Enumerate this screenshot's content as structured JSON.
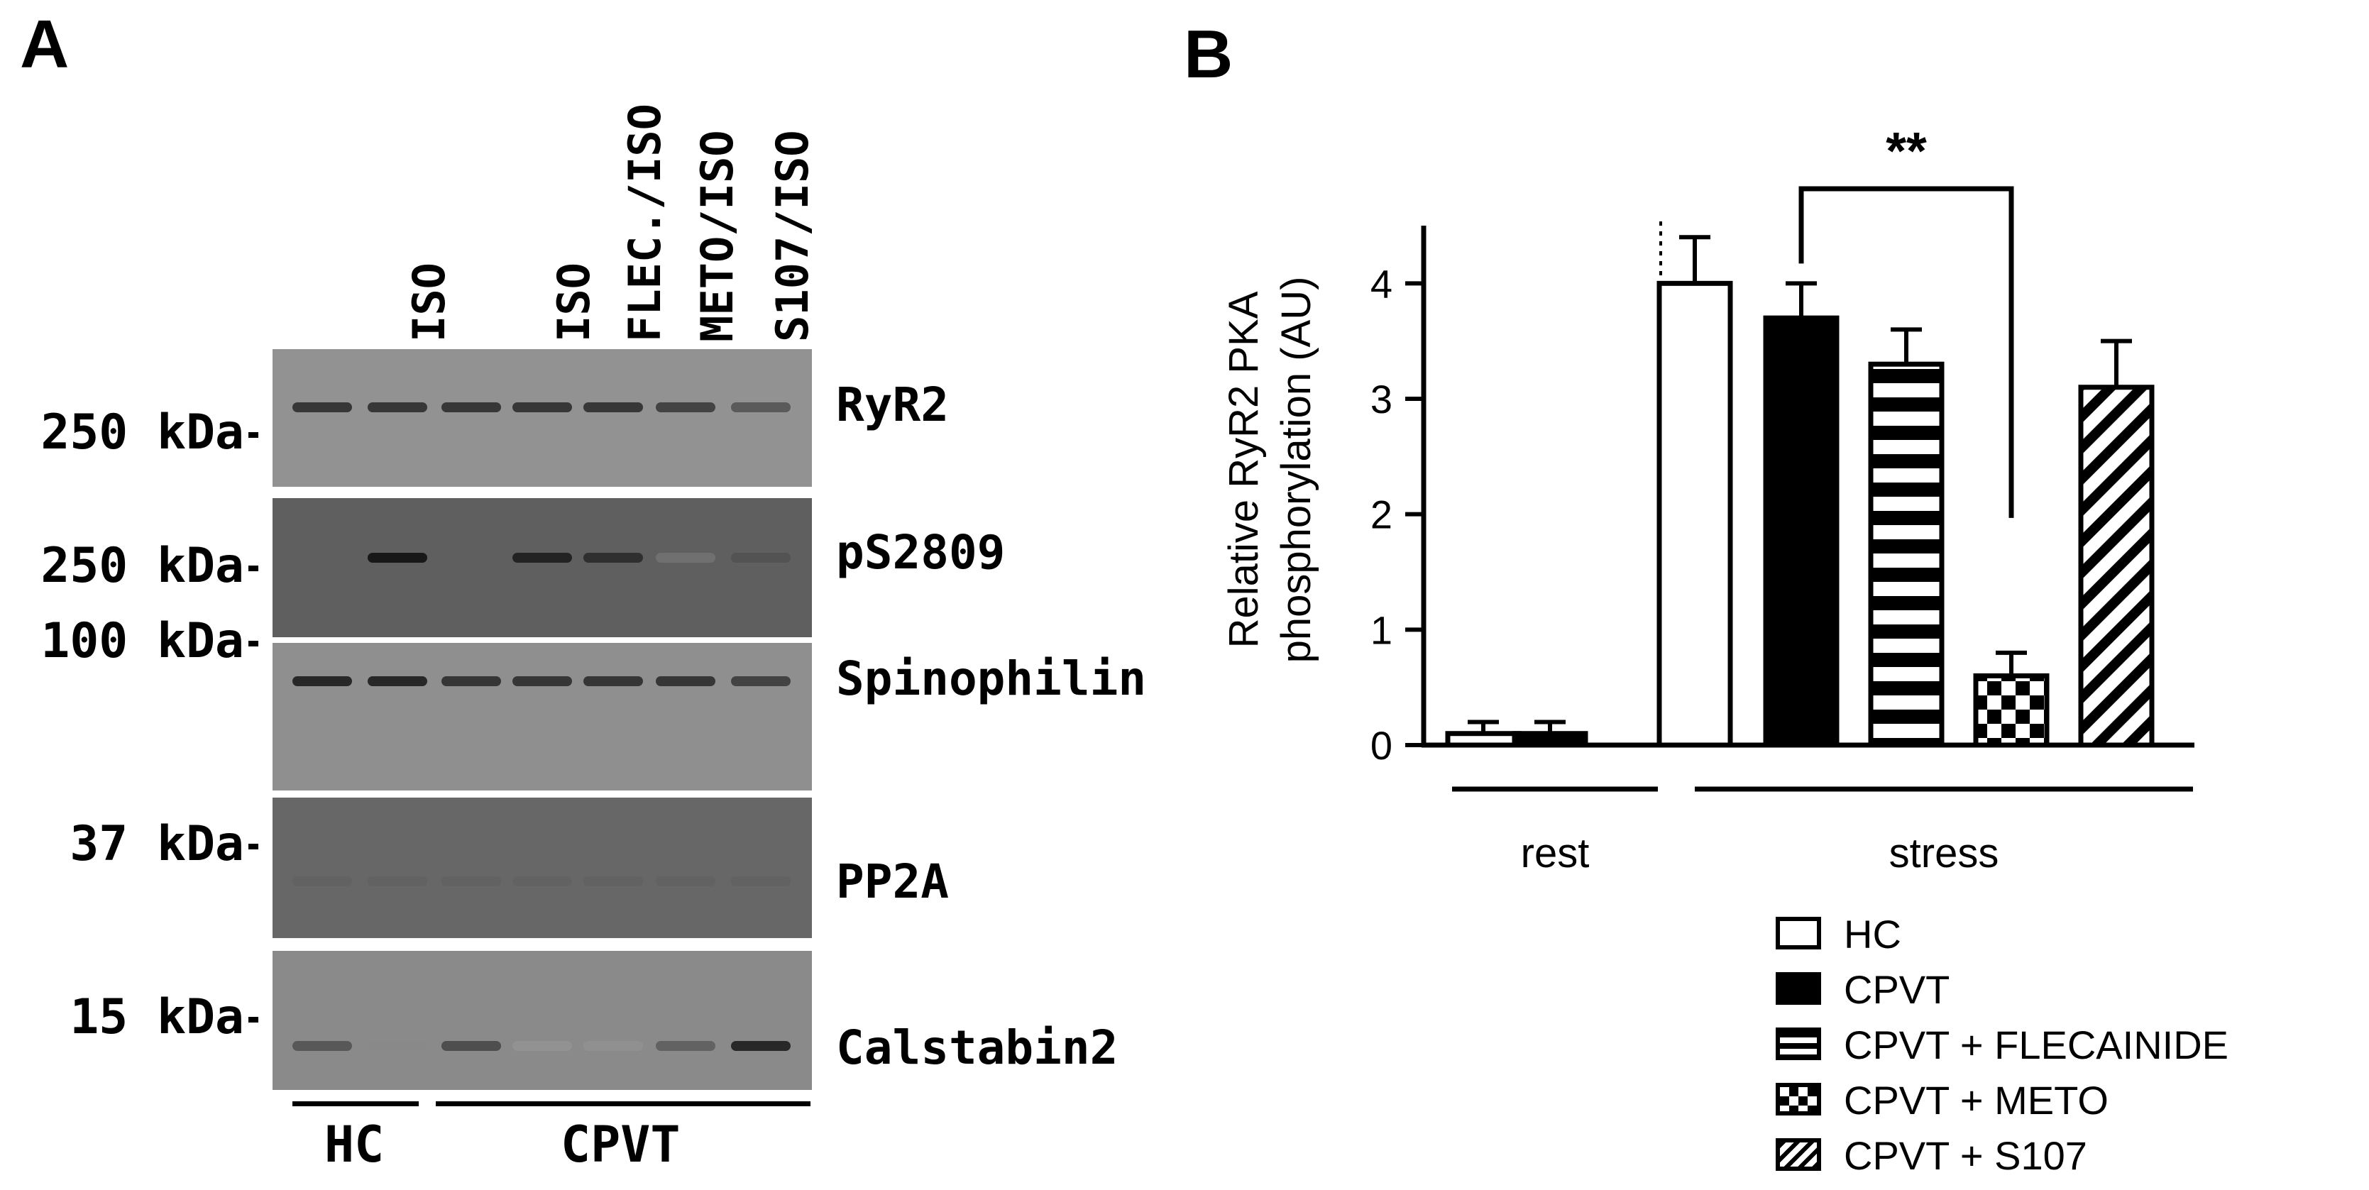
{
  "panels": {
    "a": {
      "letter": "A",
      "lane_labels": [
        "",
        "ISO",
        "",
        "ISO",
        "FLEC./ISO",
        "METO/ISO",
        "S107/ISO"
      ],
      "blots": [
        {
          "protein": "RyR2",
          "marker": "250 kDa",
          "bands": [
            0.85,
            0.85,
            0.85,
            0.85,
            0.85,
            0.8,
            0.7
          ]
        },
        {
          "protein": "pS2809",
          "marker": "250 kDa",
          "bands": [
            0.0,
            0.95,
            0.0,
            0.9,
            0.85,
            0.2,
            0.65
          ]
        },
        {
          "protein": "Spinophilin",
          "marker": "100 kDa",
          "bands": [
            0.9,
            0.9,
            0.85,
            0.85,
            0.85,
            0.85,
            0.8
          ]
        },
        {
          "protein": "PP2A",
          "marker": "37 kDa",
          "bands": [
            0.55,
            0.55,
            0.55,
            0.55,
            0.55,
            0.55,
            0.55
          ]
        },
        {
          "protein": "Calstabin2",
          "marker": "15 kDa",
          "bands": [
            0.7,
            0.35,
            0.75,
            0.15,
            0.2,
            0.65,
            0.9
          ]
        }
      ],
      "groups": [
        {
          "label": "HC",
          "lanes": [
            0,
            1
          ]
        },
        {
          "label": "CPVT",
          "lanes": [
            2,
            6
          ]
        }
      ]
    },
    "b": {
      "letter": "B"
    }
  },
  "chart_data": {
    "type": "bar",
    "ylabel_line1": "Relative RyR2 PKA",
    "ylabel_line2": "phosphorylation (AU)",
    "ylim": [
      0,
      4.5
    ],
    "yticks": [
      "0",
      "1",
      "2",
      "3",
      "4"
    ],
    "grid": false,
    "groups": [
      {
        "label": "rest",
        "bars": [
          {
            "series": "HC",
            "value": 0.1,
            "error": 0.1
          },
          {
            "series": "CPVT",
            "value": 0.1,
            "error": 0.1
          }
        ]
      },
      {
        "label": "stress",
        "bars": [
          {
            "series": "HC",
            "value": 4.0,
            "error": 0.4
          },
          {
            "series": "CPVT",
            "value": 3.7,
            "error": 0.3
          },
          {
            "series": "CPVT + FLECAINIDE",
            "value": 3.3,
            "error": 0.3
          },
          {
            "series": "CPVT + METO",
            "value": 0.6,
            "error": 0.2
          },
          {
            "series": "CPVT + S107",
            "value": 3.1,
            "error": 0.4
          }
        ]
      }
    ],
    "significance": {
      "label": "**",
      "from": "CPVT",
      "to": "CPVT + METO",
      "group": "stress"
    },
    "legend": {
      "placement": "bottom-right",
      "entries": [
        {
          "name": "HC",
          "fill": "white"
        },
        {
          "name": "CPVT",
          "fill": "black"
        },
        {
          "name": "CPVT + FLECAINIDE",
          "fill": "horizontal-stripes"
        },
        {
          "name": "CPVT + METO",
          "fill": "checker"
        },
        {
          "name": "CPVT + S107",
          "fill": "diagonal-stripes"
        }
      ]
    }
  }
}
